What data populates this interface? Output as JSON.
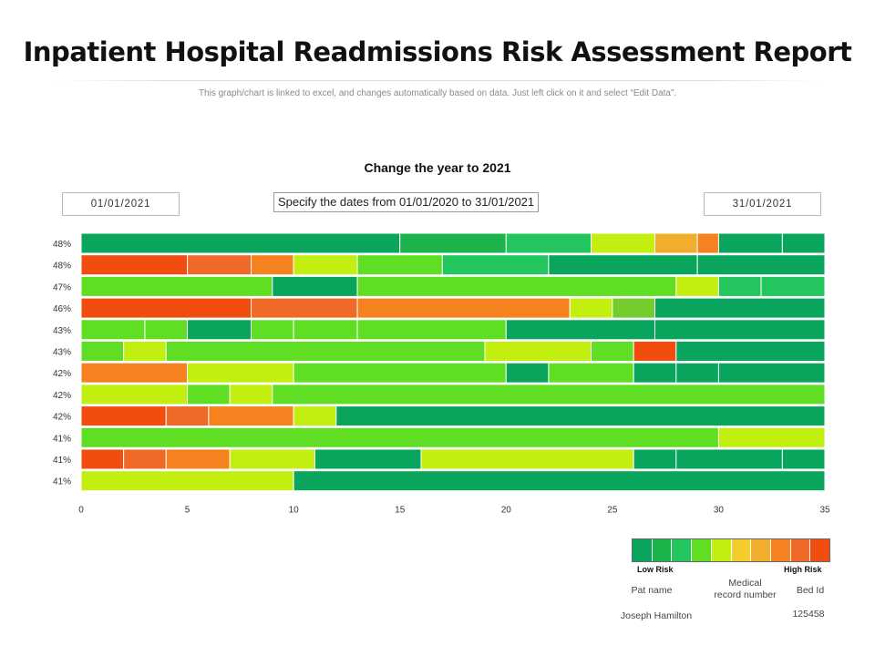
{
  "page": {
    "title": "Inpatient Hospital Readmissions Risk Assessment Report",
    "subtitle": "This graph/chart is linked to excel, and changes automatically  based on data. Just left click on it and select “Edit Data”."
  },
  "controls": {
    "chart_heading": "Change the year to 2021",
    "start_date": "01/01/2021",
    "range_note": "Specify the dates from 01/01/2020 to 31/01/2021",
    "end_date": "31/01/2021"
  },
  "colors": {
    "dark_green": "#0aa55d",
    "mid_green": "#1db34b",
    "bright_green": "#22c55e",
    "light_green": "#5fde24",
    "lime": "#c2ee10",
    "yellow": "#f4cd2c",
    "amber": "#f1ad2c",
    "orange": "#f5821e",
    "dark_orange": "#ef6a28",
    "red_orange": "#f04d0e",
    "olive_green": "#74cc2c"
  },
  "chart_data": {
    "type": "bar",
    "orientation": "horizontal-stacked",
    "title": "Change the year to 2021",
    "xlim": [
      0,
      35
    ],
    "xticks": [
      0,
      5,
      10,
      15,
      20,
      25,
      30,
      35
    ],
    "rows": [
      {
        "label": "48%",
        "segments": [
          [
            0,
            15,
            "dark_green"
          ],
          [
            15,
            20,
            "mid_green"
          ],
          [
            20,
            24,
            "bright_green"
          ],
          [
            24,
            27,
            "lime"
          ],
          [
            27,
            29,
            "amber"
          ],
          [
            29,
            30,
            "orange"
          ],
          [
            30,
            33,
            "dark_green"
          ],
          [
            33,
            35,
            "dark_green"
          ]
        ]
      },
      {
        "label": "48%",
        "segments": [
          [
            0,
            5,
            "red_orange"
          ],
          [
            5,
            8,
            "dark_orange"
          ],
          [
            8,
            10,
            "orange"
          ],
          [
            10,
            13,
            "lime"
          ],
          [
            13,
            17,
            "light_green"
          ],
          [
            17,
            22,
            "bright_green"
          ],
          [
            22,
            29,
            "dark_green"
          ],
          [
            29,
            35,
            "dark_green"
          ]
        ]
      },
      {
        "label": "47%",
        "segments": [
          [
            0,
            9,
            "light_green"
          ],
          [
            9,
            13,
            "dark_green"
          ],
          [
            13,
            28,
            "light_green"
          ],
          [
            28,
            30,
            "lime"
          ],
          [
            30,
            32,
            "bright_green"
          ],
          [
            32,
            35,
            "bright_green"
          ]
        ]
      },
      {
        "label": "46%",
        "segments": [
          [
            0,
            8,
            "red_orange"
          ],
          [
            8,
            13,
            "dark_orange"
          ],
          [
            13,
            23,
            "orange"
          ],
          [
            23,
            25,
            "lime"
          ],
          [
            25,
            27,
            "olive_green"
          ],
          [
            27,
            35,
            "dark_green"
          ]
        ]
      },
      {
        "label": "43%",
        "segments": [
          [
            0,
            3,
            "light_green"
          ],
          [
            3,
            5,
            "light_green"
          ],
          [
            5,
            8,
            "dark_green"
          ],
          [
            8,
            10,
            "light_green"
          ],
          [
            10,
            13,
            "light_green"
          ],
          [
            13,
            20,
            "light_green"
          ],
          [
            20,
            27,
            "dark_green"
          ],
          [
            27,
            35,
            "dark_green"
          ]
        ]
      },
      {
        "label": "43%",
        "segments": [
          [
            0,
            2,
            "light_green"
          ],
          [
            2,
            4,
            "lime"
          ],
          [
            4,
            19,
            "light_green"
          ],
          [
            19,
            24,
            "lime"
          ],
          [
            24,
            26,
            "light_green"
          ],
          [
            26,
            28,
            "red_orange"
          ],
          [
            28,
            35,
            "dark_green"
          ]
        ]
      },
      {
        "label": "42%",
        "segments": [
          [
            0,
            5,
            "orange"
          ],
          [
            5,
            10,
            "lime"
          ],
          [
            10,
            20,
            "light_green"
          ],
          [
            20,
            22,
            "dark_green"
          ],
          [
            22,
            26,
            "light_green"
          ],
          [
            26,
            28,
            "dark_green"
          ],
          [
            28,
            30,
            "dark_green"
          ],
          [
            30,
            35,
            "dark_green"
          ]
        ]
      },
      {
        "label": "42%",
        "segments": [
          [
            0,
            5,
            "lime"
          ],
          [
            5,
            7,
            "light_green"
          ],
          [
            7,
            9,
            "lime"
          ],
          [
            9,
            35,
            "light_green"
          ]
        ]
      },
      {
        "label": "42%",
        "segments": [
          [
            0,
            4,
            "red_orange"
          ],
          [
            4,
            6,
            "dark_orange"
          ],
          [
            6,
            10,
            "orange"
          ],
          [
            10,
            12,
            "lime"
          ],
          [
            12,
            35,
            "dark_green"
          ]
        ]
      },
      {
        "label": "41%",
        "segments": [
          [
            0,
            30,
            "light_green"
          ],
          [
            30,
            35,
            "lime"
          ]
        ]
      },
      {
        "label": "41%",
        "segments": [
          [
            0,
            2,
            "red_orange"
          ],
          [
            2,
            4,
            "dark_orange"
          ],
          [
            4,
            7,
            "orange"
          ],
          [
            7,
            11,
            "lime"
          ],
          [
            11,
            16,
            "dark_green"
          ],
          [
            16,
            26,
            "lime"
          ],
          [
            26,
            28,
            "dark_green"
          ],
          [
            28,
            33,
            "dark_green"
          ],
          [
            33,
            35,
            "dark_green"
          ]
        ]
      },
      {
        "label": "41%",
        "segments": [
          [
            0,
            10,
            "lime"
          ],
          [
            10,
            35,
            "dark_green"
          ]
        ]
      }
    ]
  },
  "legend": {
    "colors": [
      "#0aa55d",
      "#1db34b",
      "#22c55e",
      "#5fde24",
      "#c2ee10",
      "#f4cd2c",
      "#f1ad2c",
      "#f5821e",
      "#ef6a28",
      "#f04d0e"
    ],
    "low_label": "Low Risk",
    "high_label": "High Risk"
  },
  "patient": {
    "name_label": "Pat name",
    "name_value": "Joseph Hamilton",
    "record_label_line1": "Medical",
    "record_label_line2": "record number",
    "bed_label": "Bed Id",
    "bed_value": "125458"
  }
}
